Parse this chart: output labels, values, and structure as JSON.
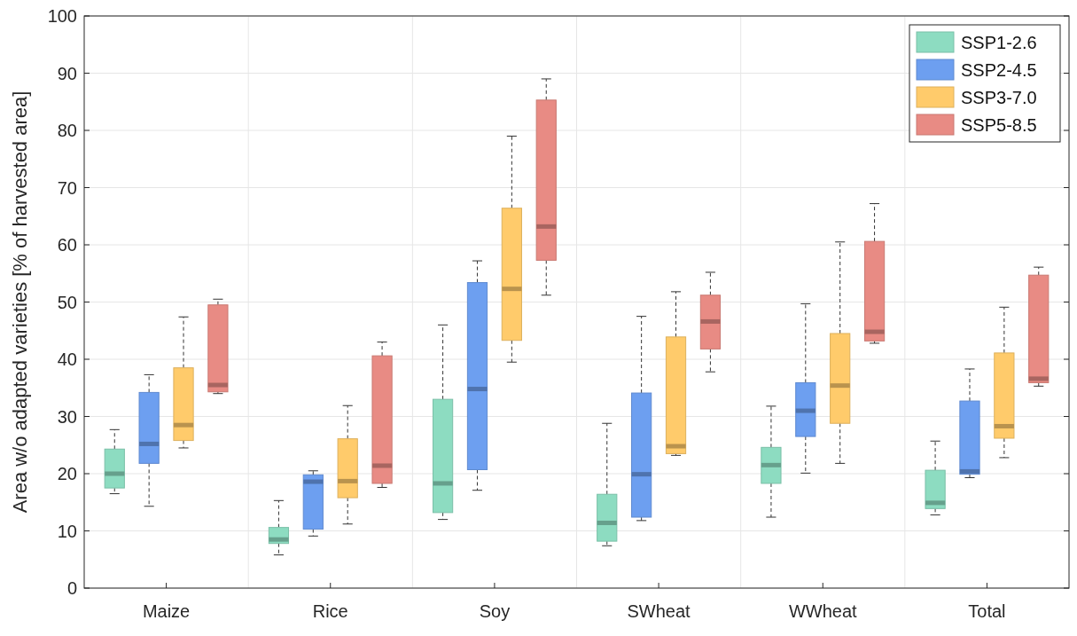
{
  "chart_data": {
    "type": "box",
    "ylabel": "Area w/o adapted varieties [% of harvested area]",
    "categories": [
      "Maize",
      "Rice",
      "Soy",
      "SWheat",
      "WWheat",
      "Total"
    ],
    "ylim": [
      0,
      100
    ],
    "yticks": [
      0,
      10,
      20,
      30,
      40,
      50,
      60,
      70,
      80,
      90,
      100
    ],
    "grid": true,
    "legend": "top right",
    "series": [
      {
        "name": "SSP1-2.6",
        "color": "#8ddcc1",
        "boxes": [
          {
            "low": 16.5,
            "q1": 17.5,
            "median": 20,
            "q3": 24.3,
            "high": 27.7
          },
          {
            "low": 5.8,
            "q1": 7.8,
            "median": 8.5,
            "q3": 10.6,
            "high": 15.3
          },
          {
            "low": 12,
            "q1": 13.2,
            "median": 18.3,
            "q3": 33,
            "high": 46
          },
          {
            "low": 7.4,
            "q1": 8.2,
            "median": 11.4,
            "q3": 16.4,
            "high": 28.8
          },
          {
            "low": 12.4,
            "q1": 18.3,
            "median": 21.5,
            "q3": 24.6,
            "high": 31.8
          },
          {
            "low": 12.8,
            "q1": 13.9,
            "median": 14.9,
            "q3": 20.6,
            "high": 25.7
          }
        ]
      },
      {
        "name": "SSP2-4.5",
        "color": "#6d9ff0",
        "boxes": [
          {
            "low": 14.3,
            "q1": 21.8,
            "median": 25.2,
            "q3": 34.2,
            "high": 37.3
          },
          {
            "low": 9.1,
            "q1": 10.3,
            "median": 18.6,
            "q3": 19.8,
            "high": 20.5
          },
          {
            "low": 17.1,
            "q1": 20.7,
            "median": 34.8,
            "q3": 53.4,
            "high": 57.2
          },
          {
            "low": 11.8,
            "q1": 12.4,
            "median": 19.9,
            "q3": 34.1,
            "high": 47.5
          },
          {
            "low": 20.1,
            "q1": 26.5,
            "median": 31,
            "q3": 35.9,
            "high": 49.7
          },
          {
            "low": 19.3,
            "q1": 19.9,
            "median": 20.4,
            "q3": 32.7,
            "high": 38.3
          }
        ]
      },
      {
        "name": "SSP3-7.0",
        "color": "#ffcb6b",
        "boxes": [
          {
            "low": 24.5,
            "q1": 25.8,
            "median": 28.5,
            "q3": 38.5,
            "high": 47.4
          },
          {
            "low": 11.2,
            "q1": 15.8,
            "median": 18.7,
            "q3": 26.1,
            "high": 31.9
          },
          {
            "low": 39.5,
            "q1": 43.3,
            "median": 52.3,
            "q3": 66.4,
            "high": 79
          },
          {
            "low": 23.2,
            "q1": 23.5,
            "median": 24.8,
            "q3": 43.9,
            "high": 51.8
          },
          {
            "low": 21.8,
            "q1": 28.8,
            "median": 35.4,
            "q3": 44.5,
            "high": 60.5
          },
          {
            "low": 22.8,
            "q1": 26.2,
            "median": 28.3,
            "q3": 41.1,
            "high": 49.1
          }
        ]
      },
      {
        "name": "SSP5-8.5",
        "color": "#e88b84",
        "boxes": [
          {
            "low": 34,
            "q1": 34.3,
            "median": 35.5,
            "q3": 49.5,
            "high": 50.5
          },
          {
            "low": 17.6,
            "q1": 18.3,
            "median": 21.4,
            "q3": 40.6,
            "high": 43
          },
          {
            "low": 51.2,
            "q1": 57.3,
            "median": 63.2,
            "q3": 85.3,
            "high": 89
          },
          {
            "low": 37.8,
            "q1": 41.8,
            "median": 46.6,
            "q3": 51.2,
            "high": 55.2
          },
          {
            "low": 42.8,
            "q1": 43.2,
            "median": 44.8,
            "q3": 60.6,
            "high": 67.2
          },
          {
            "low": 35.3,
            "q1": 35.9,
            "median": 36.6,
            "q3": 54.7,
            "high": 56.1
          }
        ]
      }
    ]
  }
}
